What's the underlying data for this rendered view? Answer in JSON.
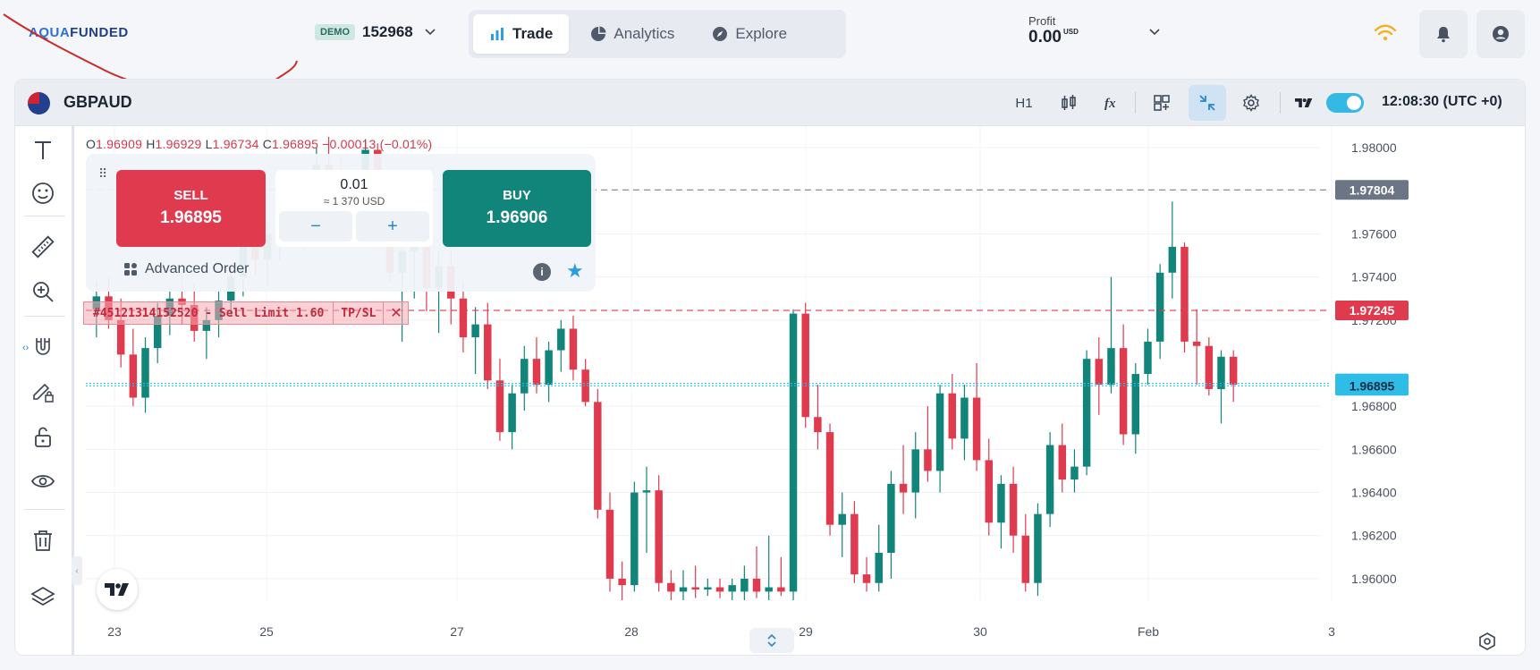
{
  "brand": {
    "logo_a": "AQUA",
    "logo_b": "FUNDED"
  },
  "account": {
    "badge": "DEMO",
    "number": "152968"
  },
  "nav": {
    "tabs": [
      {
        "label": "Trade"
      },
      {
        "label": "Analytics"
      },
      {
        "label": "Explore"
      }
    ]
  },
  "profit": {
    "label": "Profit",
    "value": "0.00",
    "currency": "USD"
  },
  "chart_header": {
    "symbol": "GBPAUD",
    "timeframe": "H1",
    "clock": "12:08:30 (UTC +0)"
  },
  "ohlc": {
    "o_key": "O",
    "o": "1.96909",
    "h_key": "H",
    "h": "1.96929",
    "l_key": "L",
    "l": "1.96734",
    "c_key": "C",
    "c": "1.96895",
    "change": "−0.00013 (−0.01%)"
  },
  "order_panel": {
    "sell_label": "SELL",
    "sell_price": "1.96895",
    "buy_label": "BUY",
    "buy_price": "1.96906",
    "quantity": "0.01",
    "quantity_usd": "≈ 1 370 USD",
    "minus": "−",
    "plus": "+",
    "advanced_label": "Advanced Order",
    "info": "i"
  },
  "order_line": {
    "text": "#45121314152520 - Sell Limit 1.60",
    "tpsl": "TP/SL",
    "close": "✕"
  },
  "colors": {
    "up": "#12857a",
    "down": "#e03a4e",
    "accent": "#2a9ee0",
    "price_ask": "#2fbde8"
  },
  "chart_data": {
    "type": "candlestick",
    "symbol": "GBPAUD",
    "timeframe": "H1",
    "y_ticks": [
      "1.98000",
      "1.97600",
      "1.97400",
      "1.97200",
      "1.96800",
      "1.96600",
      "1.96400",
      "1.96200",
      "1.96000"
    ],
    "x_ticks": [
      "23",
      "25",
      "27",
      "28",
      "29",
      "30",
      "Feb",
      "3"
    ],
    "ylim": [
      1.959,
      1.981
    ],
    "price_labels": [
      {
        "price": 1.97804,
        "label": "1.97804",
        "color": "#6b7585"
      },
      {
        "price": 1.97245,
        "label": "1.97245",
        "color": "#e03a4e"
      },
      {
        "price": 1.96906,
        "label": "1.96906",
        "color": "#2fbde8"
      },
      {
        "price": 1.96895,
        "label": "1.96895",
        "color": "#2fbde8"
      }
    ],
    "candles": [
      {
        "o": 1.9725,
        "h": 1.9738,
        "l": 1.9712,
        "c": 1.9731
      },
      {
        "o": 1.9731,
        "h": 1.974,
        "l": 1.9716,
        "c": 1.972
      },
      {
        "o": 1.972,
        "h": 1.973,
        "l": 1.9698,
        "c": 1.9704
      },
      {
        "o": 1.9704,
        "h": 1.9716,
        "l": 1.968,
        "c": 1.9684
      },
      {
        "o": 1.9684,
        "h": 1.9712,
        "l": 1.9677,
        "c": 1.9707
      },
      {
        "o": 1.9707,
        "h": 1.9728,
        "l": 1.97,
        "c": 1.9722
      },
      {
        "o": 1.9722,
        "h": 1.9735,
        "l": 1.9713,
        "c": 1.973
      },
      {
        "o": 1.973,
        "h": 1.9742,
        "l": 1.9718,
        "c": 1.9727
      },
      {
        "o": 1.9727,
        "h": 1.9737,
        "l": 1.971,
        "c": 1.9715
      },
      {
        "o": 1.9715,
        "h": 1.9726,
        "l": 1.9702,
        "c": 1.972
      },
      {
        "o": 1.972,
        "h": 1.9734,
        "l": 1.9712,
        "c": 1.9729
      },
      {
        "o": 1.9729,
        "h": 1.9745,
        "l": 1.9722,
        "c": 1.974
      },
      {
        "o": 1.974,
        "h": 1.9762,
        "l": 1.9731,
        "c": 1.9756
      },
      {
        "o": 1.9756,
        "h": 1.977,
        "l": 1.9741,
        "c": 1.9748
      },
      {
        "o": 1.9748,
        "h": 1.9765,
        "l": 1.9736,
        "c": 1.976
      },
      {
        "o": 1.976,
        "h": 1.978,
        "l": 1.9748,
        "c": 1.9772
      },
      {
        "o": 1.9772,
        "h": 1.9788,
        "l": 1.976,
        "c": 1.9767
      },
      {
        "o": 1.9767,
        "h": 1.978,
        "l": 1.9752,
        "c": 1.9774
      },
      {
        "o": 1.9774,
        "h": 1.98,
        "l": 1.9765,
        "c": 1.9792
      },
      {
        "o": 1.9792,
        "h": 1.9805,
        "l": 1.9778,
        "c": 1.9783
      },
      {
        "o": 1.9783,
        "h": 1.9796,
        "l": 1.977,
        "c": 1.9777
      },
      {
        "o": 1.9777,
        "h": 1.979,
        "l": 1.9762,
        "c": 1.9784
      },
      {
        "o": 1.9784,
        "h": 1.9804,
        "l": 1.9775,
        "c": 1.9799
      },
      {
        "o": 1.9799,
        "h": 1.9802,
        "l": 1.977,
        "c": 1.9776
      },
      {
        "o": 1.9776,
        "h": 1.9782,
        "l": 1.9738,
        "c": 1.9742
      },
      {
        "o": 1.9742,
        "h": 1.9758,
        "l": 1.971,
        "c": 1.9752
      },
      {
        "o": 1.9752,
        "h": 1.9766,
        "l": 1.973,
        "c": 1.9758
      },
      {
        "o": 1.9758,
        "h": 1.9768,
        "l": 1.9724,
        "c": 1.9735
      },
      {
        "o": 1.9735,
        "h": 1.9752,
        "l": 1.9714,
        "c": 1.9745
      },
      {
        "o": 1.9745,
        "h": 1.9752,
        "l": 1.9718,
        "c": 1.973
      },
      {
        "o": 1.973,
        "h": 1.9738,
        "l": 1.9705,
        "c": 1.9712
      },
      {
        "o": 1.9712,
        "h": 1.9726,
        "l": 1.9695,
        "c": 1.9718
      },
      {
        "o": 1.9718,
        "h": 1.9728,
        "l": 1.9688,
        "c": 1.9692
      },
      {
        "o": 1.9692,
        "h": 1.9702,
        "l": 1.9664,
        "c": 1.9668
      },
      {
        "o": 1.9668,
        "h": 1.969,
        "l": 1.966,
        "c": 1.9686
      },
      {
        "o": 1.9686,
        "h": 1.9708,
        "l": 1.9678,
        "c": 1.9702
      },
      {
        "o": 1.9702,
        "h": 1.9712,
        "l": 1.9686,
        "c": 1.969
      },
      {
        "o": 1.969,
        "h": 1.971,
        "l": 1.9682,
        "c": 1.9706
      },
      {
        "o": 1.9706,
        "h": 1.972,
        "l": 1.9696,
        "c": 1.9716
      },
      {
        "o": 1.9716,
        "h": 1.9722,
        "l": 1.9692,
        "c": 1.9697
      },
      {
        "o": 1.9697,
        "h": 1.9702,
        "l": 1.968,
        "c": 1.9682
      },
      {
        "o": 1.9682,
        "h": 1.9688,
        "l": 1.9628,
        "c": 1.9632
      },
      {
        "o": 1.9632,
        "h": 1.964,
        "l": 1.9594,
        "c": 1.96
      },
      {
        "o": 1.96,
        "h": 1.9608,
        "l": 1.959,
        "c": 1.9597
      },
      {
        "o": 1.9597,
        "h": 1.9645,
        "l": 1.9594,
        "c": 1.964
      },
      {
        "o": 1.964,
        "h": 1.9652,
        "l": 1.9612,
        "c": 1.9641
      },
      {
        "o": 1.9641,
        "h": 1.9648,
        "l": 1.9594,
        "c": 1.9598
      },
      {
        "o": 1.9598,
        "h": 1.9604,
        "l": 1.959,
        "c": 1.9594
      },
      {
        "o": 1.9594,
        "h": 1.9604,
        "l": 1.959,
        "c": 1.9596
      },
      {
        "o": 1.9596,
        "h": 1.9606,
        "l": 1.9591,
        "c": 1.9595
      },
      {
        "o": 1.9595,
        "h": 1.96,
        "l": 1.9592,
        "c": 1.9596
      },
      {
        "o": 1.9596,
        "h": 1.96,
        "l": 1.9591,
        "c": 1.9594
      },
      {
        "o": 1.9594,
        "h": 1.96,
        "l": 1.959,
        "c": 1.9597
      },
      {
        "o": 1.9594,
        "h": 1.9606,
        "l": 1.959,
        "c": 1.96
      },
      {
        "o": 1.96,
        "h": 1.9615,
        "l": 1.9591,
        "c": 1.9594
      },
      {
        "o": 1.9594,
        "h": 1.962,
        "l": 1.959,
        "c": 1.9596
      },
      {
        "o": 1.9596,
        "h": 1.961,
        "l": 1.9592,
        "c": 1.9594
      },
      {
        "o": 1.9594,
        "h": 1.9725,
        "l": 1.959,
        "c": 1.9723
      },
      {
        "o": 1.9723,
        "h": 1.9728,
        "l": 1.967,
        "c": 1.9675
      },
      {
        "o": 1.9675,
        "h": 1.969,
        "l": 1.966,
        "c": 1.9668
      },
      {
        "o": 1.9668,
        "h": 1.9672,
        "l": 1.962,
        "c": 1.9625
      },
      {
        "o": 1.9625,
        "h": 1.964,
        "l": 1.961,
        "c": 1.963
      },
      {
        "o": 1.963,
        "h": 1.9636,
        "l": 1.9598,
        "c": 1.9602
      },
      {
        "o": 1.9602,
        "h": 1.961,
        "l": 1.9594,
        "c": 1.9598
      },
      {
        "o": 1.9598,
        "h": 1.9625,
        "l": 1.9594,
        "c": 1.9612
      },
      {
        "o": 1.9612,
        "h": 1.965,
        "l": 1.96,
        "c": 1.9644
      },
      {
        "o": 1.9644,
        "h": 1.9662,
        "l": 1.963,
        "c": 1.964
      },
      {
        "o": 1.964,
        "h": 1.9668,
        "l": 1.9628,
        "c": 1.966
      },
      {
        "o": 1.966,
        "h": 1.968,
        "l": 1.9645,
        "c": 1.965
      },
      {
        "o": 1.965,
        "h": 1.969,
        "l": 1.964,
        "c": 1.9686
      },
      {
        "o": 1.9686,
        "h": 1.9695,
        "l": 1.966,
        "c": 1.9665
      },
      {
        "o": 1.9665,
        "h": 1.969,
        "l": 1.9655,
        "c": 1.9684
      },
      {
        "o": 1.9684,
        "h": 1.97,
        "l": 1.965,
        "c": 1.9655
      },
      {
        "o": 1.9655,
        "h": 1.9665,
        "l": 1.962,
        "c": 1.9626
      },
      {
        "o": 1.9626,
        "h": 1.9648,
        "l": 1.9614,
        "c": 1.9644
      },
      {
        "o": 1.9644,
        "h": 1.9652,
        "l": 1.9612,
        "c": 1.962
      },
      {
        "o": 1.962,
        "h": 1.963,
        "l": 1.9594,
        "c": 1.9598
      },
      {
        "o": 1.9598,
        "h": 1.9635,
        "l": 1.9592,
        "c": 1.963
      },
      {
        "o": 1.963,
        "h": 1.9668,
        "l": 1.9624,
        "c": 1.9662
      },
      {
        "o": 1.9662,
        "h": 1.9672,
        "l": 1.964,
        "c": 1.9646
      },
      {
        "o": 1.9646,
        "h": 1.966,
        "l": 1.964,
        "c": 1.9652
      },
      {
        "o": 1.9652,
        "h": 1.9706,
        "l": 1.9648,
        "c": 1.9702
      },
      {
        "o": 1.9702,
        "h": 1.9712,
        "l": 1.9676,
        "c": 1.969
      },
      {
        "o": 1.969,
        "h": 1.974,
        "l": 1.9686,
        "c": 1.9707
      },
      {
        "o": 1.9707,
        "h": 1.9718,
        "l": 1.9662,
        "c": 1.9667
      },
      {
        "o": 1.9667,
        "h": 1.97,
        "l": 1.9658,
        "c": 1.9695
      },
      {
        "o": 1.9695,
        "h": 1.9716,
        "l": 1.969,
        "c": 1.971
      },
      {
        "o": 1.971,
        "h": 1.9746,
        "l": 1.9702,
        "c": 1.9742
      },
      {
        "o": 1.9742,
        "h": 1.9775,
        "l": 1.973,
        "c": 1.9754
      },
      {
        "o": 1.9754,
        "h": 1.9756,
        "l": 1.9705,
        "c": 1.971
      },
      {
        "o": 1.971,
        "h": 1.9725,
        "l": 1.969,
        "c": 1.9708
      },
      {
        "o": 1.9708,
        "h": 1.9712,
        "l": 1.9685,
        "c": 1.9688
      },
      {
        "o": 1.9688,
        "h": 1.9706,
        "l": 1.9672,
        "c": 1.9703
      },
      {
        "o": 1.9703,
        "h": 1.9706,
        "l": 1.9682,
        "c": 1.969
      }
    ]
  }
}
